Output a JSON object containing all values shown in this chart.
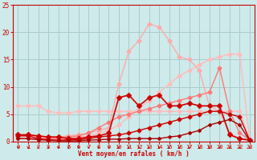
{
  "background_color": "#ceeaea",
  "grid_color": "#aacccc",
  "xlabel": "Vent moyen/en rafales ( km/h )",
  "xlabel_color": "#cc0000",
  "tick_color": "#cc0000",
  "xlim": [
    -0.5,
    23.5
  ],
  "ylim": [
    0,
    25
  ],
  "yticks": [
    0,
    5,
    10,
    15,
    20,
    25
  ],
  "xticks": [
    0,
    1,
    2,
    3,
    4,
    5,
    6,
    7,
    8,
    9,
    10,
    11,
    12,
    13,
    14,
    15,
    16,
    17,
    18,
    19,
    20,
    21,
    22,
    23
  ],
  "lines": [
    {
      "x": [
        0,
        1,
        2,
        3,
        4,
        5,
        6,
        7,
        8,
        9,
        10,
        11,
        12,
        13,
        14,
        15,
        16,
        17,
        18,
        19,
        20,
        21,
        22,
        23
      ],
      "y": [
        6.5,
        6.5,
        6.5,
        5.5,
        5.2,
        5.2,
        5.5,
        5.5,
        5.5,
        5.5,
        5.5,
        5.5,
        5.5,
        5.5,
        5.5,
        5.5,
        5.5,
        5.5,
        5.5,
        5.5,
        5.5,
        5.5,
        5.5,
        0.3
      ],
      "color": "#ffbbbb",
      "lw": 1.0,
      "marker": "D",
      "ms": 2.5
    },
    {
      "x": [
        0,
        1,
        2,
        3,
        4,
        5,
        6,
        7,
        8,
        9,
        10,
        11,
        12,
        13,
        14,
        15,
        16,
        17,
        18,
        19,
        20,
        21,
        22,
        23
      ],
      "y": [
        0.5,
        0.5,
        0.5,
        0.5,
        0.5,
        0.5,
        0.8,
        1.0,
        1.5,
        2.0,
        3.0,
        4.5,
        6.0,
        7.5,
        9.0,
        10.5,
        12.0,
        13.0,
        14.0,
        15.0,
        15.5,
        16.0,
        16.0,
        0.3
      ],
      "color": "#ffbbbb",
      "lw": 1.0,
      "marker": "D",
      "ms": 2.5
    },
    {
      "x": [
        0,
        1,
        2,
        3,
        4,
        5,
        6,
        7,
        8,
        9,
        10,
        11,
        12,
        13,
        14,
        15,
        16,
        17,
        18,
        19,
        20,
        21,
        22,
        23
      ],
      "y": [
        1.0,
        1.0,
        0.8,
        0.8,
        0.8,
        1.0,
        1.2,
        1.5,
        2.0,
        2.5,
        10.5,
        16.5,
        18.5,
        21.5,
        21.0,
        18.5,
        15.5,
        15.0,
        13.0,
        6.5,
        5.5,
        1.5,
        0.5,
        0.3
      ],
      "color": "#ffaaaa",
      "lw": 1.0,
      "marker": "D",
      "ms": 2.5
    },
    {
      "x": [
        0,
        1,
        2,
        3,
        4,
        5,
        6,
        7,
        8,
        9,
        10,
        11,
        12,
        13,
        14,
        15,
        16,
        17,
        18,
        19,
        20,
        21,
        22,
        23
      ],
      "y": [
        0.5,
        0.5,
        0.5,
        0.5,
        0.5,
        0.8,
        1.0,
        1.5,
        2.5,
        3.5,
        4.5,
        5.0,
        5.5,
        6.0,
        6.5,
        7.0,
        7.5,
        8.0,
        8.5,
        9.0,
        13.5,
        5.5,
        1.5,
        0.3
      ],
      "color": "#ff7777",
      "lw": 1.0,
      "marker": "D",
      "ms": 2.5
    },
    {
      "x": [
        0,
        1,
        2,
        3,
        4,
        5,
        6,
        7,
        8,
        9,
        10,
        11,
        12,
        13,
        14,
        15,
        16,
        17,
        18,
        19,
        20,
        21,
        22,
        23
      ],
      "y": [
        1.2,
        1.2,
        1.0,
        0.8,
        0.8,
        0.5,
        0.5,
        0.8,
        1.0,
        1.5,
        8.0,
        8.5,
        6.5,
        8.0,
        8.5,
        6.5,
        6.5,
        7.0,
        6.5,
        6.5,
        6.5,
        1.2,
        0.5,
        0.2
      ],
      "color": "#cc0000",
      "lw": 1.2,
      "marker": "D",
      "ms": 3
    },
    {
      "x": [
        0,
        1,
        2,
        3,
        4,
        5,
        6,
        7,
        8,
        9,
        10,
        11,
        12,
        13,
        14,
        15,
        16,
        17,
        18,
        19,
        20,
        21,
        22,
        23
      ],
      "y": [
        1.0,
        1.0,
        0.5,
        0.3,
        0.2,
        0.3,
        0.3,
        0.5,
        0.8,
        1.0,
        1.2,
        1.5,
        2.0,
        2.5,
        3.0,
        3.5,
        4.0,
        4.5,
        5.0,
        5.5,
        5.5,
        5.0,
        4.5,
        0.2
      ],
      "color": "#cc0000",
      "lw": 1.0,
      "marker": "D",
      "ms": 2.5
    },
    {
      "x": [
        0,
        1,
        2,
        3,
        4,
        5,
        6,
        7,
        8,
        9,
        10,
        11,
        12,
        13,
        14,
        15,
        16,
        17,
        18,
        19,
        20,
        21,
        22,
        23
      ],
      "y": [
        0.5,
        0.5,
        0.3,
        0.2,
        0.1,
        0.1,
        0.1,
        0.2,
        0.3,
        0.4,
        0.4,
        0.5,
        0.5,
        0.5,
        0.5,
        0.8,
        1.0,
        1.5,
        2.0,
        3.0,
        3.5,
        4.0,
        3.0,
        0.1
      ],
      "color": "#aa0000",
      "lw": 1.0,
      "marker": "D",
      "ms": 2.0
    }
  ],
  "wind_symbols": [
    "⬉",
    "⬉",
    "⬉",
    "↓",
    "⬉",
    "↓",
    "↓",
    "↓",
    "↓",
    "↓",
    "↓",
    "↵",
    "↓",
    "↓",
    "↓",
    "↓",
    "→",
    "⬉",
    "↵",
    "↓",
    "↓",
    "⬊",
    "↓"
  ],
  "arrow_color": "#cc0000"
}
